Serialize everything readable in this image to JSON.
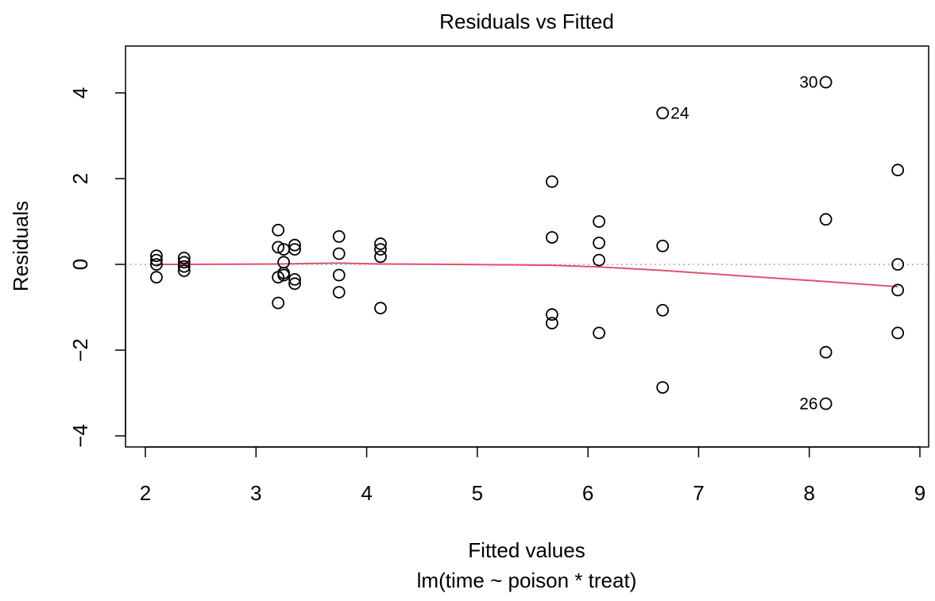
{
  "chart_data": {
    "type": "scatter",
    "title": "Residuals vs Fitted",
    "xlabel": "Fitted values",
    "subtitle": "lm(time ~ poison * treat)",
    "ylabel": "Residuals",
    "xlim": [
      2,
      9
    ],
    "ylim": [
      -4,
      4
    ],
    "x_ticks": [
      "2",
      "3",
      "4",
      "5",
      "6",
      "7",
      "8",
      "9"
    ],
    "y_ticks": [
      "−4",
      "−2",
      "0",
      "2",
      "4"
    ],
    "reference_line_y": 0,
    "smoother_color": "#df536b",
    "points": [
      {
        "x": 2.1,
        "y": 0.2
      },
      {
        "x": 2.1,
        "y": 0.1
      },
      {
        "x": 2.1,
        "y": 0.0
      },
      {
        "x": 2.1,
        "y": -0.3
      },
      {
        "x": 2.35,
        "y": 0.15
      },
      {
        "x": 2.35,
        "y": 0.05
      },
      {
        "x": 2.35,
        "y": -0.05
      },
      {
        "x": 2.35,
        "y": -0.15
      },
      {
        "x": 3.2,
        "y": 0.8
      },
      {
        "x": 3.2,
        "y": 0.4
      },
      {
        "x": 3.2,
        "y": -0.3
      },
      {
        "x": 3.2,
        "y": -0.9
      },
      {
        "x": 3.25,
        "y": 0.35
      },
      {
        "x": 3.25,
        "y": 0.05
      },
      {
        "x": 3.25,
        "y": -0.2
      },
      {
        "x": 3.25,
        "y": -0.25
      },
      {
        "x": 3.35,
        "y": 0.45
      },
      {
        "x": 3.35,
        "y": 0.35
      },
      {
        "x": 3.35,
        "y": -0.35
      },
      {
        "x": 3.35,
        "y": -0.45
      },
      {
        "x": 3.75,
        "y": 0.65
      },
      {
        "x": 3.75,
        "y": 0.25
      },
      {
        "x": 3.75,
        "y": -0.25
      },
      {
        "x": 3.75,
        "y": -0.65
      },
      {
        "x": 4.125,
        "y": 0.48
      },
      {
        "x": 4.125,
        "y": 0.35
      },
      {
        "x": 4.125,
        "y": 0.18
      },
      {
        "x": 4.125,
        "y": -1.02
      },
      {
        "x": 5.675,
        "y": 1.93
      },
      {
        "x": 5.675,
        "y": 0.63
      },
      {
        "x": 5.675,
        "y": -1.17
      },
      {
        "x": 5.675,
        "y": -1.37
      },
      {
        "x": 6.1,
        "y": 1.0
      },
      {
        "x": 6.1,
        "y": 0.5
      },
      {
        "x": 6.1,
        "y": 0.1
      },
      {
        "x": 6.1,
        "y": -1.6
      },
      {
        "x": 6.675,
        "y": 3.53,
        "label": "24",
        "label_side": "right"
      },
      {
        "x": 6.675,
        "y": 0.43
      },
      {
        "x": 6.675,
        "y": -1.07
      },
      {
        "x": 6.675,
        "y": -2.87
      },
      {
        "x": 8.15,
        "y": 4.25,
        "label": "30",
        "label_side": "left"
      },
      {
        "x": 8.15,
        "y": 1.05
      },
      {
        "x": 8.15,
        "y": -2.05
      },
      {
        "x": 8.15,
        "y": -3.25,
        "label": "26",
        "label_side": "left"
      },
      {
        "x": 8.8,
        "y": 2.2
      },
      {
        "x": 8.8,
        "y": 0.0
      },
      {
        "x": 8.8,
        "y": -0.6
      },
      {
        "x": 8.8,
        "y": -1.6
      }
    ],
    "smoother": [
      {
        "x": 2.1,
        "y": 0.0
      },
      {
        "x": 2.35,
        "y": 0.0
      },
      {
        "x": 2.8,
        "y": 0.005
      },
      {
        "x": 3.2,
        "y": 0.01
      },
      {
        "x": 3.75,
        "y": 0.03
      },
      {
        "x": 4.125,
        "y": 0.01
      },
      {
        "x": 4.8,
        "y": 0.0
      },
      {
        "x": 5.675,
        "y": -0.02
      },
      {
        "x": 6.1,
        "y": -0.06
      },
      {
        "x": 6.675,
        "y": -0.14
      },
      {
        "x": 7.4,
        "y": -0.27
      },
      {
        "x": 8.15,
        "y": -0.4
      },
      {
        "x": 8.8,
        "y": -0.52
      }
    ]
  }
}
